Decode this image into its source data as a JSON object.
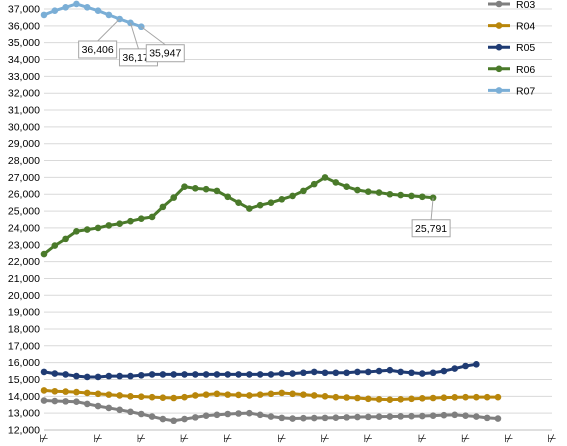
{
  "chart_data": {
    "type": "line",
    "title": "",
    "xlabel": "",
    "ylabel": "",
    "ylim": [
      12000,
      37000
    ],
    "ytick_step": 1000,
    "ytick_labels": [
      "12,000",
      "13,000",
      "14,000",
      "15,000",
      "16,000",
      "17,000",
      "18,000",
      "19,000",
      "20,000",
      "21,000",
      "22,000",
      "23,000",
      "24,000",
      "25,000",
      "26,000",
      "27,000",
      "28,000",
      "29,000",
      "30,000",
      "31,000",
      "32,000",
      "33,000",
      "34,000",
      "35,000",
      "36,000",
      "37,000"
    ],
    "x_count": 48,
    "x_tick_mark": "⊬",
    "x_tick_indexes": [
      0,
      5,
      9,
      13,
      17,
      22,
      26,
      30,
      35,
      39,
      43,
      47
    ],
    "grid": true,
    "legend": "right",
    "series": [
      {
        "name": "R03",
        "color": "#7f7f7f",
        "values": [
          13750,
          13720,
          13700,
          13680,
          13550,
          13420,
          13310,
          13200,
          13080,
          12950,
          12800,
          12650,
          12550,
          12650,
          12750,
          12850,
          12900,
          12950,
          12980,
          13000,
          12900,
          12800,
          12720,
          12680,
          12700,
          12710,
          12720,
          12730,
          12750,
          12770,
          12780,
          12790,
          12800,
          12810,
          12820,
          12830,
          12850,
          12880,
          12900,
          12850,
          12800,
          12720,
          12680
        ]
      },
      {
        "name": "R04",
        "color": "#b8860b",
        "values": [
          14350,
          14300,
          14280,
          14250,
          14200,
          14150,
          14100,
          14050,
          14000,
          13980,
          13950,
          13920,
          13900,
          13950,
          14050,
          14100,
          14150,
          14100,
          14080,
          14050,
          14100,
          14150,
          14200,
          14150,
          14100,
          14050,
          14000,
          13950,
          13930,
          13900,
          13850,
          13820,
          13800,
          13820,
          13850,
          13880,
          13900,
          13920,
          13940,
          13950,
          13950,
          13950,
          13950
        ]
      },
      {
        "name": "R05",
        "color": "#1f3b73",
        "values": [
          15450,
          15350,
          15300,
          15200,
          15150,
          15150,
          15200,
          15200,
          15200,
          15250,
          15300,
          15300,
          15300,
          15300,
          15300,
          15300,
          15300,
          15300,
          15300,
          15300,
          15300,
          15300,
          15350,
          15350,
          15400,
          15450,
          15400,
          15400,
          15400,
          15450,
          15450,
          15500,
          15550,
          15450,
          15400,
          15350,
          15400,
          15500,
          15650,
          15800,
          15900
        ]
      },
      {
        "name": "R06",
        "color": "#4a7a2a",
        "values": [
          22450,
          22950,
          23350,
          23800,
          23900,
          24000,
          24150,
          24250,
          24400,
          24550,
          24650,
          25250,
          25800,
          26450,
          26350,
          26300,
          26200,
          25850,
          25500,
          25150,
          25350,
          25500,
          25700,
          25900,
          26200,
          26600,
          27000,
          26700,
          26450,
          26250,
          26150,
          26100,
          26000,
          25950,
          25900,
          25850,
          25791
        ]
      },
      {
        "name": "R07",
        "color": "#7aaed6",
        "values": [
          36650,
          36900,
          37100,
          37300,
          37100,
          36900,
          36650,
          36406,
          36177,
          35947
        ]
      }
    ],
    "annotations": [
      {
        "series": "R07",
        "index": 7,
        "label": "36,406"
      },
      {
        "series": "R07",
        "index": 8,
        "label": "36,177"
      },
      {
        "series": "R07",
        "index": 9,
        "label": "35,947"
      },
      {
        "series": "R06",
        "index": 36,
        "label": "25,791"
      }
    ]
  }
}
